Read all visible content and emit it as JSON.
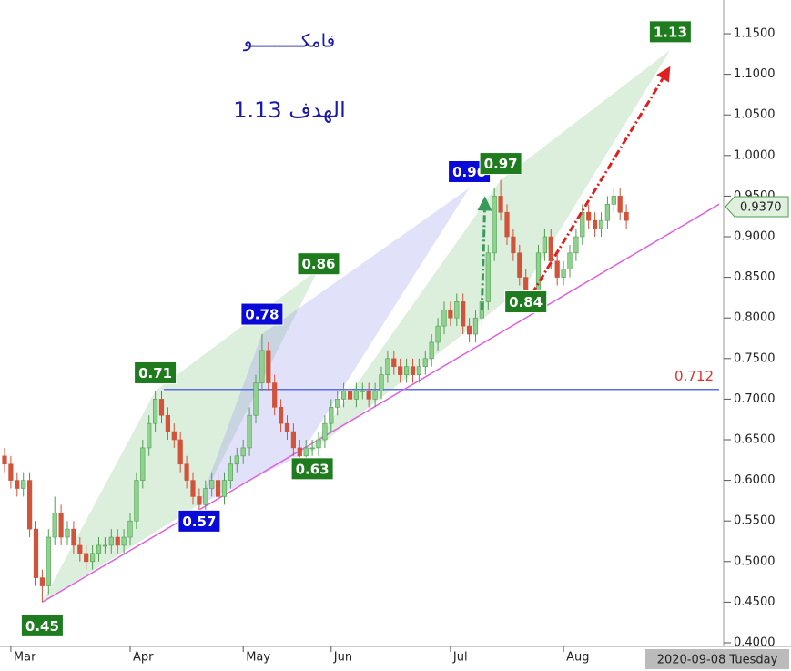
{
  "chart_data": {
    "type": "candlestick",
    "title": "قامكـــــــــو",
    "subtitle": "الهدف 1.13",
    "date_label": "2020-09-08 Tuesday",
    "up_color": "#8fd18f",
    "up_edge": "#4f9e4f",
    "down_color": "#d0533a",
    "categories": [
      null,
      null,
      null,
      null,
      null,
      null,
      null,
      null,
      null,
      null,
      null,
      null,
      null,
      null,
      null,
      null,
      null,
      null,
      null,
      null,
      null,
      null,
      null,
      null,
      null,
      null,
      null,
      null,
      null,
      null,
      null,
      null,
      null,
      null,
      null,
      null,
      null,
      null,
      null,
      null,
      null,
      null,
      null,
      null,
      null,
      null,
      null,
      null,
      null,
      null,
      null,
      null,
      null,
      null,
      null,
      null,
      null,
      null,
      null,
      null,
      null,
      null,
      null,
      null,
      null,
      null,
      null,
      null,
      null,
      null,
      null,
      null,
      null,
      null,
      null,
      null,
      null,
      null,
      null,
      null,
      null,
      null,
      null,
      null,
      null,
      null,
      null,
      null,
      null,
      null,
      null,
      null,
      null,
      null,
      null,
      null,
      null,
      null,
      null,
      null
    ],
    "open": [
      0.63,
      0.62,
      0.6,
      0.59,
      0.6,
      0.54,
      0.48,
      0.47,
      0.53,
      0.56,
      0.53,
      0.54,
      0.52,
      0.51,
      0.5,
      0.51,
      0.52,
      0.52,
      0.53,
      0.52,
      0.53,
      0.55,
      0.6,
      0.64,
      0.67,
      0.7,
      0.68,
      0.66,
      0.65,
      0.62,
      0.6,
      0.58,
      0.57,
      0.59,
      0.6,
      0.58,
      0.6,
      0.62,
      0.63,
      0.64,
      0.68,
      0.72,
      0.76,
      0.72,
      0.69,
      0.67,
      0.66,
      0.64,
      0.63,
      0.64,
      0.64,
      0.65,
      0.67,
      0.69,
      0.7,
      0.71,
      0.7,
      0.71,
      0.71,
      0.7,
      0.71,
      0.73,
      0.75,
      0.74,
      0.73,
      0.74,
      0.73,
      0.74,
      0.75,
      0.77,
      0.79,
      0.81,
      0.8,
      0.82,
      0.79,
      0.78,
      0.8,
      0.82,
      0.88,
      0.95,
      0.93,
      0.9,
      0.88,
      0.85,
      0.82,
      0.83,
      0.88,
      0.9,
      0.87,
      0.85,
      0.86,
      0.88,
      0.9,
      0.93,
      0.92,
      0.91,
      0.92,
      0.94,
      0.95,
      0.93
    ],
    "high": [
      0.64,
      0.63,
      0.61,
      0.61,
      0.61,
      0.55,
      0.49,
      0.54,
      0.58,
      0.57,
      0.55,
      0.55,
      0.53,
      0.52,
      0.52,
      0.53,
      0.53,
      0.54,
      0.54,
      0.54,
      0.56,
      0.61,
      0.65,
      0.68,
      0.71,
      0.71,
      0.69,
      0.67,
      0.66,
      0.63,
      0.61,
      0.59,
      0.6,
      0.61,
      0.61,
      0.61,
      0.63,
      0.64,
      0.65,
      0.69,
      0.73,
      0.78,
      0.77,
      0.73,
      0.7,
      0.68,
      0.67,
      0.65,
      0.65,
      0.65,
      0.66,
      0.68,
      0.7,
      0.71,
      0.72,
      0.72,
      0.72,
      0.72,
      0.72,
      0.72,
      0.74,
      0.76,
      0.76,
      0.75,
      0.75,
      0.75,
      0.75,
      0.76,
      0.78,
      0.8,
      0.82,
      0.82,
      0.83,
      0.83,
      0.8,
      0.81,
      0.83,
      0.89,
      0.96,
      0.97,
      0.94,
      0.91,
      0.89,
      0.86,
      0.84,
      0.89,
      0.91,
      0.91,
      0.88,
      0.87,
      0.89,
      0.91,
      0.94,
      0.94,
      0.93,
      0.93,
      0.95,
      0.96,
      0.96,
      0.94
    ],
    "low": [
      0.61,
      0.59,
      0.58,
      0.58,
      0.53,
      0.47,
      0.45,
      0.46,
      0.52,
      0.52,
      0.52,
      0.51,
      0.5,
      0.49,
      0.49,
      0.5,
      0.51,
      0.51,
      0.51,
      0.51,
      0.52,
      0.54,
      0.59,
      0.63,
      0.66,
      0.67,
      0.65,
      0.64,
      0.61,
      0.59,
      0.57,
      0.56,
      0.56,
      0.58,
      0.57,
      0.57,
      0.59,
      0.61,
      0.62,
      0.63,
      0.67,
      0.71,
      0.71,
      0.68,
      0.66,
      0.65,
      0.63,
      0.62,
      0.62,
      0.63,
      0.63,
      0.64,
      0.66,
      0.68,
      0.69,
      0.69,
      0.69,
      0.7,
      0.69,
      0.69,
      0.7,
      0.72,
      0.73,
      0.72,
      0.72,
      0.72,
      0.72,
      0.73,
      0.74,
      0.76,
      0.78,
      0.79,
      0.79,
      0.78,
      0.77,
      0.77,
      0.79,
      0.81,
      0.87,
      0.92,
      0.89,
      0.87,
      0.84,
      0.81,
      0.81,
      0.82,
      0.87,
      0.86,
      0.84,
      0.84,
      0.85,
      0.87,
      0.89,
      0.91,
      0.9,
      0.9,
      0.91,
      0.93,
      0.92,
      0.91
    ],
    "close": [
      0.62,
      0.6,
      0.59,
      0.6,
      0.54,
      0.48,
      0.47,
      0.53,
      0.56,
      0.53,
      0.54,
      0.52,
      0.51,
      0.5,
      0.51,
      0.52,
      0.52,
      0.53,
      0.52,
      0.53,
      0.55,
      0.6,
      0.64,
      0.67,
      0.7,
      0.68,
      0.66,
      0.65,
      0.62,
      0.6,
      0.58,
      0.57,
      0.59,
      0.6,
      0.58,
      0.6,
      0.62,
      0.63,
      0.64,
      0.68,
      0.72,
      0.76,
      0.72,
      0.69,
      0.67,
      0.66,
      0.64,
      0.63,
      0.64,
      0.64,
      0.65,
      0.67,
      0.69,
      0.7,
      0.71,
      0.7,
      0.71,
      0.71,
      0.7,
      0.71,
      0.73,
      0.75,
      0.74,
      0.73,
      0.74,
      0.73,
      0.74,
      0.75,
      0.77,
      0.79,
      0.81,
      0.8,
      0.82,
      0.79,
      0.78,
      0.8,
      0.82,
      0.88,
      0.95,
      0.93,
      0.9,
      0.88,
      0.85,
      0.82,
      0.83,
      0.88,
      0.9,
      0.87,
      0.85,
      0.86,
      0.88,
      0.9,
      0.93,
      0.92,
      0.91,
      0.92,
      0.94,
      0.95,
      0.93,
      0.92
    ],
    "xlim": [
      -0.725,
      113.77
    ],
    "xticks": [
      {
        "value": 1,
        "label": "Mar"
      },
      {
        "value": 20,
        "label": "Apr"
      },
      {
        "value": 38,
        "label": "May"
      },
      {
        "value": 52,
        "label": "Jun"
      },
      {
        "value": 71,
        "label": "Jul"
      },
      {
        "value": 89,
        "label": "Aug"
      }
    ],
    "ylim": [
      0.3955,
      1.1915
    ],
    "yticks": [
      {
        "value": 0.4,
        "label": "0.4000"
      },
      {
        "value": 0.45,
        "label": "0.4500"
      },
      {
        "value": 0.5,
        "label": "0.5000"
      },
      {
        "value": 0.55,
        "label": "0.5500"
      },
      {
        "value": 0.6,
        "label": "0.6000"
      },
      {
        "value": 0.65,
        "label": "0.6500"
      },
      {
        "value": 0.7,
        "label": "0.7000"
      },
      {
        "value": 0.75,
        "label": "0.7500"
      },
      {
        "value": 0.8,
        "label": "0.8000"
      },
      {
        "value": 0.85,
        "label": "0.8500"
      },
      {
        "value": 0.9,
        "label": "0.9000"
      },
      {
        "value": 0.95,
        "label": "0.9500"
      },
      {
        "value": 1.0,
        "label": "1.0000"
      },
      {
        "value": 1.05,
        "label": "1.0500"
      },
      {
        "value": 1.1,
        "label": "1.1000"
      },
      {
        "value": 1.15,
        "label": "1.1500"
      }
    ],
    "last_price": {
      "value": 0.937,
      "label": "0.9370"
    },
    "level": {
      "value": 0.712,
      "color": "#5b6fe0",
      "label_color": "#e03030"
    },
    "trendline": {
      "color": "#e060e0",
      "points": [
        [
          6,
          0.45
        ],
        [
          113.77,
          0.94
        ]
      ]
    },
    "patterns": [
      {
        "color": "#8cc88c",
        "points": [
          [
            6,
            0.45
          ],
          [
            24,
            0.71
          ],
          [
            31,
            0.57
          ]
        ]
      },
      {
        "color": "#8cc88c",
        "points": [
          [
            24,
            0.71
          ],
          [
            50,
            0.86
          ],
          [
            31,
            0.57
          ]
        ]
      },
      {
        "color": "#9a9aee",
        "points": [
          [
            31,
            0.57
          ],
          [
            41,
            0.78
          ],
          [
            47,
            0.63
          ]
        ]
      },
      {
        "color": "#9a9aee",
        "points": [
          [
            41,
            0.78
          ],
          [
            74,
            0.96
          ],
          [
            47,
            0.63
          ]
        ]
      },
      {
        "color": "#8cc88c",
        "points": [
          [
            48,
            0.63
          ],
          [
            79,
            0.97
          ],
          [
            83,
            0.84
          ]
        ]
      },
      {
        "color": "#8cc88c",
        "points": [
          [
            79,
            0.97
          ],
          [
            106,
            1.13
          ],
          [
            83,
            0.84
          ]
        ]
      }
    ],
    "arrows": [
      {
        "color": "#3a9a5a",
        "points": [
          [
            76,
            0.81
          ],
          [
            76.5,
            0.95
          ]
        ]
      },
      {
        "color": "#e02020",
        "points": [
          [
            84,
            0.83
          ],
          [
            106,
            1.11
          ]
        ]
      }
    ],
    "annotations": [
      {
        "x": 6,
        "value": 0.45,
        "color": "#1e7b1e"
      },
      {
        "x": 24,
        "value": 0.71,
        "color": "#1e7b1e"
      },
      {
        "x": 31,
        "value": 0.57,
        "color": "#0a0ad8"
      },
      {
        "x": 41,
        "value": 0.78,
        "color": "#0a0ad8"
      },
      {
        "x": 49,
        "value": 0.63,
        "color": "#1e7b1e"
      },
      {
        "x": 50,
        "value": 0.86,
        "color": "#1e7b1e"
      },
      {
        "x": 74,
        "value": 0.96,
        "color": "#0a0ad8"
      },
      {
        "x": 79,
        "value": 0.97,
        "color": "#1e7b1e"
      },
      {
        "x": 83,
        "value": 0.84,
        "color": "#1e7b1e"
      },
      {
        "x": 106,
        "value": 1.13,
        "color": "#1e7b1e"
      }
    ]
  }
}
